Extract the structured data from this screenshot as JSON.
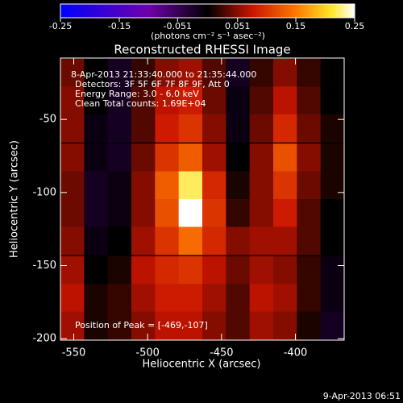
{
  "chart_data": {
    "type": "heatmap",
    "title": "Reconstructed RHESSI Image",
    "colorbar_label": "(photons cm⁻² s⁻¹ asec⁻²)",
    "clim": [
      -0.25,
      0.25
    ],
    "cticks": [
      -0.25,
      -0.15,
      -0.051,
      0.051,
      0.15,
      0.25
    ],
    "x_label": "Heliocentric X (arcsec)",
    "y_label": "Heliocentric Y (arcsec)",
    "xlim": [
      -559,
      -367
    ],
    "ylim": [
      -201,
      -8
    ],
    "xticks": [
      -550,
      -500,
      -450,
      -400
    ],
    "yticks": [
      -50,
      -100,
      -150,
      -200
    ],
    "annotations": [
      "8-Apr-2013 21:33:40.000 to 21:35:44.000",
      "Detectors: 3F 5F 6F 7F 8F 9F, Att 0",
      "Energy Range: 3.0 - 6.0 keV",
      "Clean     Total counts: 1.69E+04"
    ],
    "peak_label": "Position of Peak = [-469,-107]",
    "footer": "9-Apr-2013 06:51",
    "x": [
      -551,
      -535,
      -519,
      -503,
      -487,
      -471,
      -455,
      -439,
      -423,
      -407,
      -391,
      -375
    ],
    "y": [
      -18,
      -37,
      -56,
      -76,
      -95,
      -114,
      -133,
      -153,
      -172,
      -191
    ],
    "z": [
      [
        0.04,
        0.0,
        -0.02,
        0.02,
        0.05,
        0.06,
        0.03,
        -0.02,
        0.02,
        0.05,
        0.02,
        0.0
      ],
      [
        0.05,
        0.0,
        -0.02,
        0.03,
        0.07,
        0.08,
        0.04,
        -0.01,
        0.03,
        0.07,
        0.03,
        0.0
      ],
      [
        0.05,
        -0.01,
        -0.02,
        0.03,
        0.08,
        0.1,
        0.05,
        -0.01,
        0.04,
        0.09,
        0.04,
        0.01
      ],
      [
        0.05,
        -0.01,
        -0.02,
        0.04,
        0.1,
        0.13,
        0.06,
        0.0,
        0.05,
        0.12,
        0.05,
        0.01
      ],
      [
        0.04,
        -0.02,
        -0.01,
        0.05,
        0.13,
        0.22,
        0.09,
        0.01,
        0.05,
        0.1,
        0.04,
        0.01
      ],
      [
        0.04,
        -0.02,
        -0.01,
        0.05,
        0.12,
        0.25,
        0.1,
        0.02,
        0.05,
        0.08,
        0.03,
        0.0
      ],
      [
        0.05,
        -0.01,
        0.0,
        0.06,
        0.1,
        0.14,
        0.09,
        0.05,
        0.06,
        0.06,
        0.03,
        0.0
      ],
      [
        0.06,
        0.0,
        0.01,
        0.07,
        0.09,
        0.1,
        0.07,
        0.04,
        0.06,
        0.05,
        0.02,
        -0.01
      ],
      [
        0.07,
        0.01,
        0.02,
        0.06,
        0.08,
        0.08,
        0.06,
        0.03,
        0.07,
        0.06,
        0.02,
        -0.01
      ],
      [
        0.06,
        0.01,
        0.02,
        0.05,
        0.07,
        0.07,
        0.05,
        0.03,
        0.06,
        0.05,
        0.01,
        -0.02
      ]
    ]
  }
}
